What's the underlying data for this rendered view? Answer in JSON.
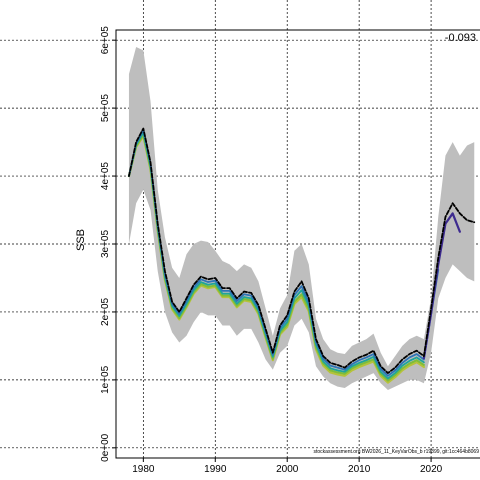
{
  "chart_data": {
    "type": "line",
    "ylabel": "SSB",
    "corner_label": "-0.093",
    "footnote": "stockassessment.org BW2026_11_KeyVarObs_b r19899, git:1cc464b8069",
    "xlim": [
      1976.2,
      2026.8
    ],
    "ylim": [
      -15000,
      615000
    ],
    "xticks": [
      1980,
      1990,
      2000,
      2010,
      2020
    ],
    "xtick_labels": [
      "1980",
      "1990",
      "2000",
      "2010",
      "2020"
    ],
    "yticks": [
      0,
      100000,
      200000,
      300000,
      400000,
      500000,
      600000
    ],
    "ytick_labels": [
      "0e+00",
      "1e+05",
      "2e+05",
      "3e+05",
      "4e+05",
      "5e+05",
      "6e+05"
    ],
    "grid": true,
    "colors": {
      "band": "#bebebe",
      "grid": "#000000",
      "estimate": "#000000",
      "purple": "#3d2b8f",
      "blue": "#2e74b5",
      "teal": "#1fa59a",
      "green": "#7dbd3b",
      "olive": "#b6c23a"
    },
    "x": [
      1978,
      1979,
      1980,
      1981,
      1982,
      1983,
      1984,
      1985,
      1986,
      1987,
      1988,
      1989,
      1990,
      1991,
      1992,
      1993,
      1994,
      1995,
      1996,
      1997,
      1998,
      1999,
      2000,
      2001,
      2002,
      2003,
      2004,
      2005,
      2006,
      2007,
      2008,
      2009,
      2010,
      2011,
      2012,
      2013,
      2014,
      2015,
      2016,
      2017,
      2018,
      2019,
      2020,
      2021,
      2022,
      2023,
      2024,
      2025,
      2026
    ],
    "band_lower": [
      300000,
      360000,
      380000,
      350000,
      260000,
      200000,
      170000,
      155000,
      165000,
      185000,
      200000,
      195000,
      195000,
      180000,
      180000,
      165000,
      175000,
      175000,
      155000,
      130000,
      115000,
      140000,
      150000,
      180000,
      190000,
      170000,
      120000,
      105000,
      95000,
      90000,
      88000,
      95000,
      100000,
      105000,
      110000,
      95000,
      85000,
      90000,
      95000,
      100000,
      100000,
      95000,
      140000,
      220000,
      250000,
      270000,
      260000,
      250000,
      245000
    ],
    "band_upper": [
      550000,
      590000,
      585000,
      510000,
      380000,
      310000,
      265000,
      250000,
      285000,
      300000,
      305000,
      303000,
      290000,
      275000,
      270000,
      260000,
      270000,
      265000,
      245000,
      205000,
      165000,
      205000,
      225000,
      290000,
      300000,
      270000,
      190000,
      160000,
      145000,
      140000,
      138000,
      150000,
      155000,
      160000,
      168000,
      140000,
      120000,
      135000,
      150000,
      160000,
      165000,
      160000,
      220000,
      340000,
      430000,
      450000,
      430000,
      445000,
      450000
    ],
    "series": [
      {
        "key": "estimate",
        "values": [
          400000,
          450000,
          470000,
          420000,
          330000,
          260000,
          215000,
          200000,
          220000,
          240000,
          252000,
          248000,
          250000,
          235000,
          235000,
          220000,
          230000,
          228000,
          210000,
          175000,
          140000,
          180000,
          195000,
          230000,
          245000,
          220000,
          160000,
          135000,
          125000,
          122000,
          118000,
          127000,
          133000,
          137000,
          143000,
          120000,
          110000,
          118000,
          130000,
          138000,
          143000,
          135000,
          205000,
          280000,
          340000,
          360000,
          345000,
          335000,
          332000
        ]
      },
      {
        "key": "purple",
        "values": [
          null,
          null,
          null,
          null,
          null,
          null,
          null,
          null,
          null,
          null,
          null,
          null,
          null,
          null,
          null,
          null,
          null,
          null,
          null,
          null,
          null,
          null,
          null,
          null,
          null,
          null,
          null,
          null,
          null,
          null,
          null,
          null,
          null,
          null,
          null,
          null,
          null,
          null,
          null,
          null,
          null,
          132000,
          198000,
          270000,
          330000,
          345000,
          318000,
          null,
          null
        ]
      },
      {
        "key": "blue",
        "values": [
          400000,
          448000,
          468000,
          418000,
          328000,
          256000,
          212000,
          197000,
          216000,
          236000,
          248000,
          244000,
          246000,
          231000,
          231000,
          216000,
          226000,
          224000,
          206000,
          171000,
          137000,
          176000,
          190000,
          225000,
          238000,
          214000,
          156000,
          131000,
          121000,
          118000,
          115000,
          123000,
          129000,
          133000,
          138000,
          116000,
          106000,
          114000,
          125000,
          133000,
          138000,
          130000,
          196000,
          262000,
          null,
          null,
          null,
          null,
          null
        ]
      },
      {
        "key": "teal",
        "values": [
          400000,
          446000,
          464000,
          414000,
          324000,
          252000,
          209000,
          194000,
          212000,
          232000,
          244000,
          240000,
          242000,
          227000,
          227000,
          212000,
          222000,
          220000,
          202000,
          167000,
          134000,
          172000,
          185000,
          220000,
          232000,
          209000,
          152000,
          127000,
          117000,
          114000,
          112000,
          120000,
          125000,
          129000,
          134000,
          112000,
          102000,
          110000,
          121000,
          128000,
          133000,
          126000,
          null,
          null,
          null,
          null,
          null,
          null,
          null
        ]
      },
      {
        "key": "green",
        "values": [
          400000,
          444000,
          461000,
          411000,
          321000,
          249000,
          206000,
          191000,
          209000,
          229000,
          241000,
          237000,
          239000,
          224000,
          224000,
          209000,
          219000,
          217000,
          199000,
          164000,
          131000,
          169000,
          181000,
          215000,
          226000,
          204000,
          148000,
          124000,
          114000,
          111000,
          109000,
          117000,
          122000,
          126000,
          130000,
          109000,
          99000,
          107000,
          117000,
          124000,
          129000,
          122000,
          null,
          null,
          null,
          null,
          null,
          null,
          null
        ]
      },
      {
        "key": "olive",
        "values": [
          400000,
          443000,
          459000,
          409000,
          319000,
          247000,
          204000,
          189000,
          207000,
          227000,
          239000,
          235000,
          237000,
          222000,
          222000,
          207000,
          217000,
          215000,
          197000,
          162000,
          129000,
          167000,
          178000,
          212000,
          222000,
          201000,
          145000,
          121000,
          111000,
          108000,
          106000,
          114000,
          119000,
          123000,
          127000,
          106000,
          96000,
          104000,
          114000,
          121000,
          126000,
          119000,
          null,
          null,
          null,
          null,
          null,
          null,
          null
        ]
      }
    ]
  }
}
